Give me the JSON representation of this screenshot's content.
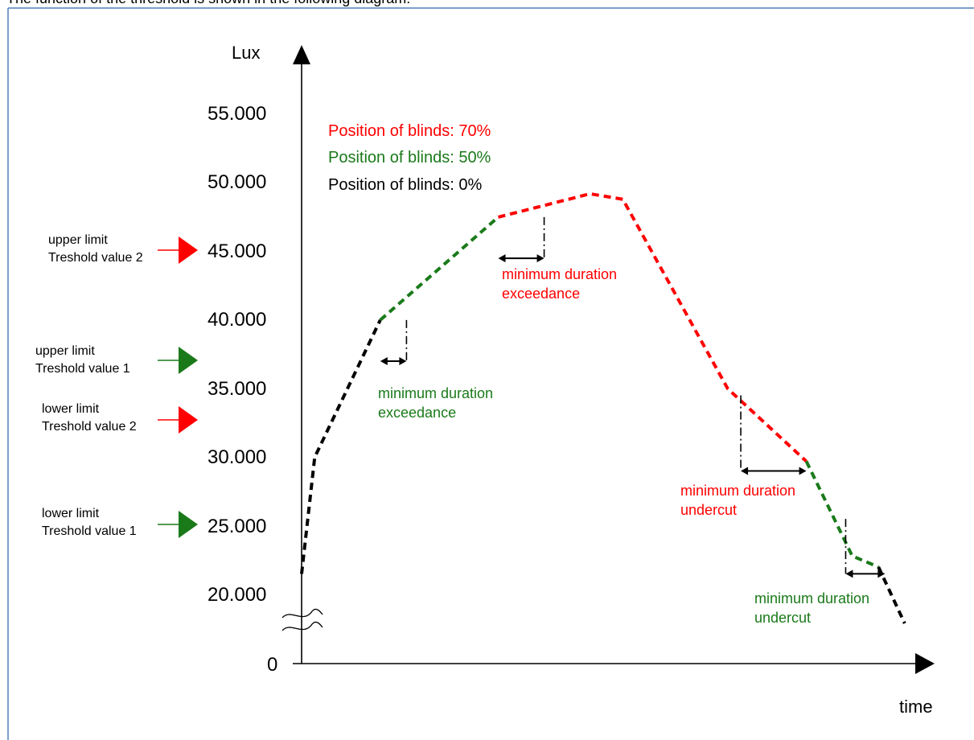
{
  "header_text": "The function of the threshold is shown in the following diagram:",
  "colors": {
    "frame": "#4f81bd",
    "black": "#000000",
    "green": "#1a7a1a",
    "red": "#ff0000"
  },
  "chart_data": {
    "type": "line",
    "ylabel": "Lux",
    "xlabel": "time",
    "y_ticks": [
      "55.000",
      "50.000",
      "45.000",
      "40.000",
      "35.000",
      "30.000",
      "25.000",
      "20.000",
      "0"
    ],
    "legend": [
      {
        "label": "Position of blinds: 70%",
        "color": "red"
      },
      {
        "label": "Position of blinds: 50%",
        "color": "green"
      },
      {
        "label": "Position of blinds: 0%",
        "color": "black"
      }
    ],
    "thresholds": [
      {
        "label_line1": "upper limit",
        "label_line2": "Treshold value 2",
        "value": 45000,
        "color": "red"
      },
      {
        "label_line1": "upper limit",
        "label_line2": "Treshold value 1",
        "value": 37500,
        "color": "green"
      },
      {
        "label_line1": "lower limit",
        "label_line2": "Treshold value 2",
        "value": 32500,
        "color": "red"
      },
      {
        "label_line1": "lower limit",
        "label_line2": "Treshold value 1",
        "value": 25000,
        "color": "green"
      }
    ],
    "series": [
      {
        "color": "black",
        "points": [
          [
            0,
            21500
          ],
          [
            2,
            30000
          ],
          [
            12,
            40000
          ]
        ]
      },
      {
        "color": "green",
        "points": [
          [
            12,
            40000
          ],
          [
            30,
            47500
          ]
        ]
      },
      {
        "color": "red",
        "points": [
          [
            30,
            47500
          ],
          [
            44,
            49200
          ],
          [
            49,
            48800
          ],
          [
            65,
            35000
          ],
          [
            77,
            29700
          ]
        ]
      },
      {
        "color": "green",
        "points": [
          [
            77,
            29700
          ],
          [
            84,
            22800
          ],
          [
            88,
            22000
          ]
        ]
      },
      {
        "color": "black",
        "points": [
          [
            88,
            22000
          ],
          [
            92,
            18500
          ]
        ]
      }
    ],
    "annotations": [
      {
        "text_line1": "minimum duration",
        "text_line2": "exceedance",
        "color": "green",
        "x_start": 12,
        "x_end": 16,
        "y": 37000,
        "vline_x": 16,
        "vline_from": 40000
      },
      {
        "text_line1": "minimum duration",
        "text_line2": "exceedance",
        "color": "red",
        "x_start": 30,
        "x_end": 37,
        "y": 44500,
        "vline_x": 37,
        "vline_from": 47500
      },
      {
        "text_line1": "minimum duration",
        "text_line2": "undercut",
        "color": "red",
        "x_start": 67,
        "x_end": 77,
        "y": 29000,
        "vline_x": 67,
        "vline_from": 34500
      },
      {
        "text_line1": "minimum duration",
        "text_line2": "undercut",
        "color": "green",
        "x_start": 83,
        "x_end": 89,
        "y": 21500,
        "vline_x": 83,
        "vline_from": 25500
      }
    ]
  }
}
